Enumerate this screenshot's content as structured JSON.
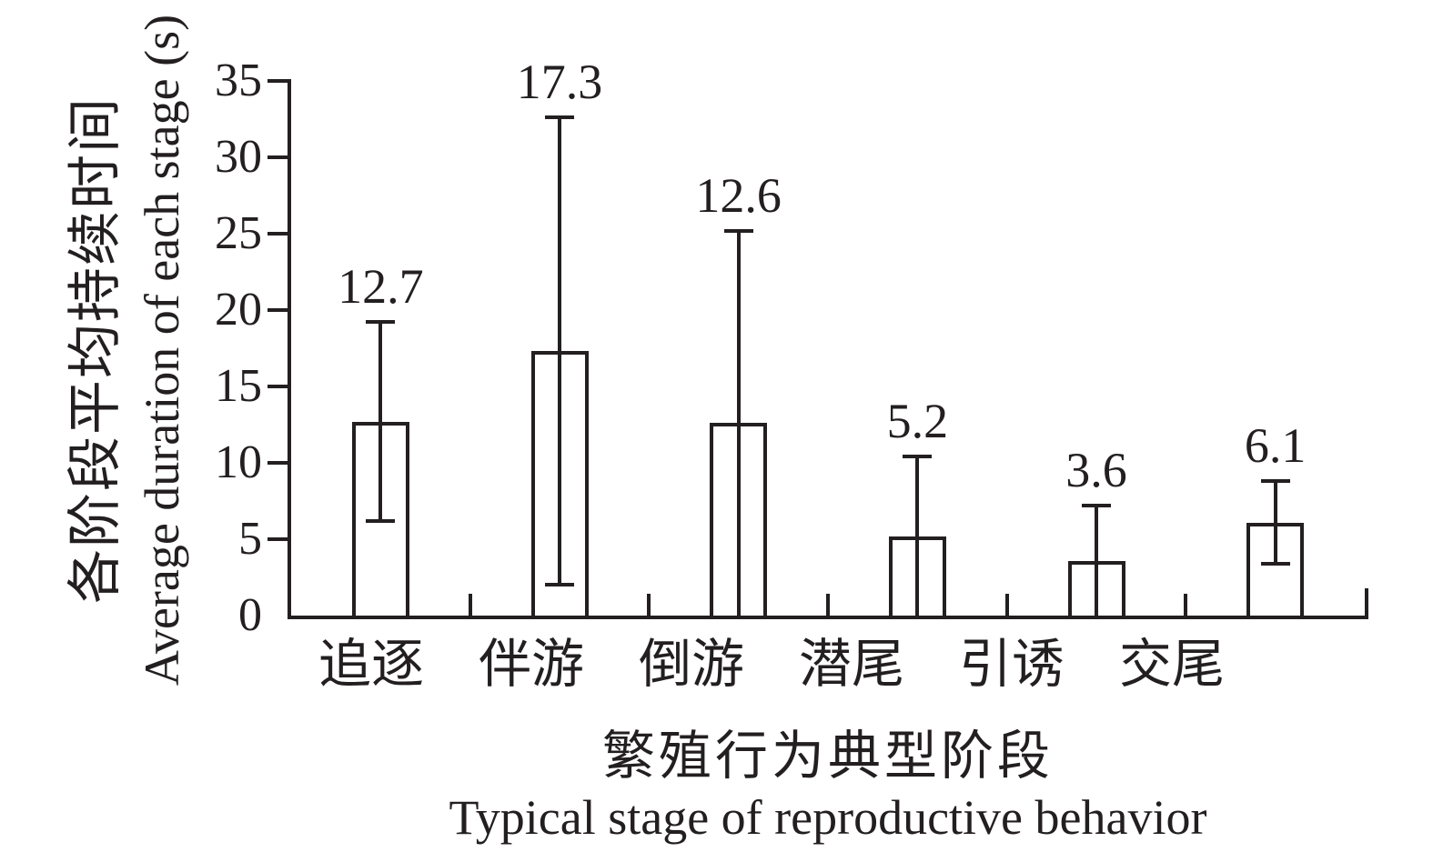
{
  "chart_data": {
    "type": "bar",
    "title": "",
    "categories": [
      "追逐",
      "伴游",
      "倒游",
      "潜尾",
      "引诱",
      "交尾"
    ],
    "values": [
      12.7,
      17.3,
      12.6,
      5.2,
      3.6,
      6.1
    ],
    "value_labels": [
      "12.7",
      "17.3",
      "12.6",
      "5.2",
      "3.6",
      "6.1"
    ],
    "error_upper_abs": [
      19.2,
      32.6,
      25.2,
      10.4,
      7.2,
      8.8
    ],
    "error_lower_abs": [
      6.2,
      2.0,
      0,
      0,
      0,
      3.4
    ],
    "yticks": [
      0,
      5,
      10,
      15,
      20,
      25,
      30,
      35
    ],
    "ylim": [
      0,
      35
    ],
    "ylabel_zh": "各阶段平均持续时间",
    "ylabel_en": "Average duration of each stage (s)",
    "xlabel_zh": "繁殖行为典型阶段",
    "xlabel_en": "Typical stage of reproductive behavior",
    "legend": null,
    "grid": false,
    "colors": {
      "line": "#231f20",
      "bar_fill": "#ffffff",
      "background": "#ffffff"
    }
  }
}
